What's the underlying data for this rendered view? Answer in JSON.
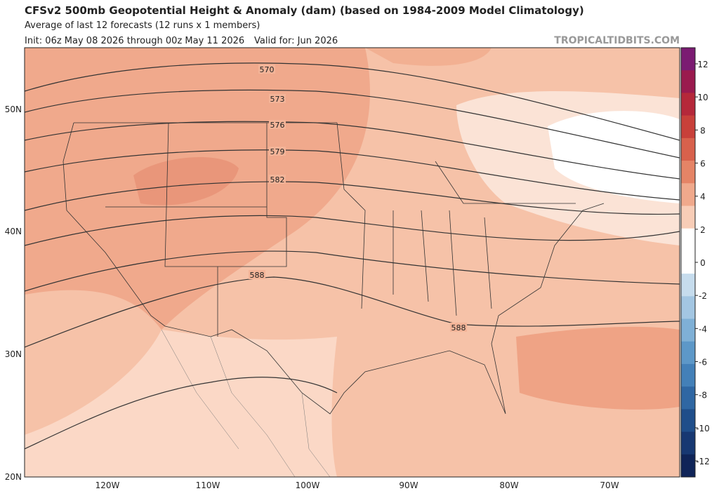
{
  "header": {
    "title": "CFSv2 500mb Geopotential Height & Anomaly (dam) (based on 1984-2009 Model Climatology)",
    "subtitle": "Average of last 12 forecasts (12 runs x 1 members)",
    "init": "Init: 06z May 08 2026 through 00z May 11 2026",
    "valid": "Valid for: Jun 2026",
    "source": "TROPICALTIDBITS.COM"
  },
  "map": {
    "lat_labels": [
      "50N",
      "40N",
      "30N",
      "20N"
    ],
    "lon_labels": [
      "120W",
      "110W",
      "100W",
      "90W",
      "80W",
      "70W"
    ],
    "contour_labels": [
      "570",
      "573",
      "576",
      "579",
      "582",
      "588",
      "588"
    ]
  },
  "colorbar": {
    "ticks": [
      12,
      10,
      8,
      6,
      4,
      2,
      0,
      -2,
      -4,
      -6,
      -8,
      -10,
      -12
    ]
  }
}
